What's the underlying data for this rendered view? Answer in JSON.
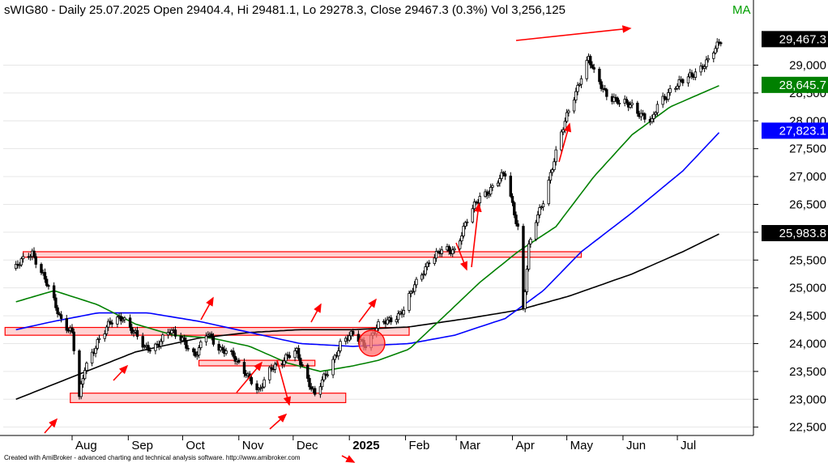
{
  "header": {
    "text": "sWIG80 - Daily 25.07.2025 Open 29404.4, Hi 29481.1, Lo 29278.3, Close 29467.3 (0.3%) Vol 3,256,125",
    "suffix": "MA"
  },
  "footer": "Created with AmiBroker - advanced charting and technical analysis software. http://www.amibroker.com",
  "colors": {
    "up": "#000000",
    "price": "#000000",
    "ma50": "#008000",
    "ma100": "#0000ff",
    "ma200": "#000000",
    "annot": "#ff0000",
    "zone_fill": "#ffc0c0"
  },
  "chart_data": {
    "type": "candlestick",
    "instrument": "sWIG80",
    "interval": "Daily",
    "last_bar": {
      "date": "25.07.2025",
      "open": 29404.4,
      "high": 29481.1,
      "low": 29278.3,
      "close": 29467.3,
      "change_pct": 0.3,
      "volume": 3256125
    },
    "y_ticks": [
      22500,
      23000,
      23500,
      24000,
      24500,
      25000,
      25500,
      26000,
      26500,
      27000,
      27500,
      28000,
      28500,
      29000
    ],
    "ylim": [
      22350,
      29850
    ],
    "month_labels": [
      "Aug",
      "Sep",
      "Oct",
      "Nov",
      "Dec",
      "2025",
      "Feb",
      "Mar",
      "Apr",
      "May",
      "Jun",
      "Jul"
    ],
    "series_tags": [
      {
        "label": "29,467.3",
        "value": 29467.3,
        "bg": "#000000",
        "fg": "#ffffff"
      },
      {
        "label": "28,645.7",
        "value": 28645.7,
        "bg": "#008000",
        "fg": "#ffffff"
      },
      {
        "label": "27,823.1",
        "value": 27823.1,
        "bg": "#0000ff",
        "fg": "#ffffff"
      },
      {
        "label": "25,983.8",
        "value": 25983.8,
        "bg": "#000000",
        "fg": "#ffffff"
      }
    ],
    "price_path": [
      [
        "2024-07-01",
        25350
      ],
      [
        "2024-07-05",
        25500
      ],
      [
        "2024-07-10",
        25650
      ],
      [
        "2024-07-15",
        25300
      ],
      [
        "2024-07-20",
        24900
      ],
      [
        "2024-07-25",
        24500
      ],
      [
        "2024-08-01",
        24200
      ],
      [
        "2024-08-05",
        23000
      ],
      [
        "2024-08-08",
        23550
      ],
      [
        "2024-08-15",
        24050
      ],
      [
        "2024-08-22",
        24350
      ],
      [
        "2024-08-29",
        24500
      ],
      [
        "2024-09-03",
        24250
      ],
      [
        "2024-09-10",
        23900
      ],
      [
        "2024-09-17",
        24000
      ],
      [
        "2024-09-24",
        24200
      ],
      [
        "2024-10-01",
        24100
      ],
      [
        "2024-10-08",
        23750
      ],
      [
        "2024-10-15",
        24200
      ],
      [
        "2024-10-22",
        23900
      ],
      [
        "2024-10-29",
        23750
      ],
      [
        "2024-11-05",
        23500
      ],
      [
        "2024-11-12",
        23100
      ],
      [
        "2024-11-19",
        23600
      ],
      [
        "2024-11-26",
        23700
      ],
      [
        "2024-12-03",
        23850
      ],
      [
        "2024-12-10",
        23300
      ],
      [
        "2024-12-13",
        23050
      ],
      [
        "2024-12-20",
        23500
      ],
      [
        "2024-12-27",
        24000
      ],
      [
        "2025-01-03",
        24150
      ],
      [
        "2025-01-10",
        24000
      ],
      [
        "2025-01-17",
        24300
      ],
      [
        "2025-01-24",
        24450
      ],
      [
        "2025-01-31",
        24600
      ],
      [
        "2025-02-07",
        25100
      ],
      [
        "2025-02-14",
        25500
      ],
      [
        "2025-02-21",
        25650
      ],
      [
        "2025-02-28",
        25700
      ],
      [
        "2025-03-07",
        26200
      ],
      [
        "2025-03-14",
        26650
      ],
      [
        "2025-03-21",
        26800
      ],
      [
        "2025-03-28",
        27050
      ],
      [
        "2025-04-04",
        26100
      ],
      [
        "2025-04-07",
        24600
      ],
      [
        "2025-04-10",
        25700
      ],
      [
        "2025-04-14",
        26200
      ],
      [
        "2025-04-18",
        26600
      ],
      [
        "2025-04-25",
        27400
      ],
      [
        "2025-05-02",
        28200
      ],
      [
        "2025-05-09",
        28800
      ],
      [
        "2025-05-13",
        29100
      ],
      [
        "2025-05-16",
        28850
      ],
      [
        "2025-05-23",
        28500
      ],
      [
        "2025-05-30",
        28300
      ],
      [
        "2025-06-06",
        28300
      ],
      [
        "2025-06-13",
        28050
      ],
      [
        "2025-06-17",
        27950
      ],
      [
        "2025-06-20",
        28300
      ],
      [
        "2025-06-27",
        28550
      ],
      [
        "2025-07-04",
        28700
      ],
      [
        "2025-07-11",
        28900
      ],
      [
        "2025-07-18",
        29050
      ],
      [
        "2025-07-25",
        29467
      ]
    ],
    "ma50_path": [
      [
        "2024-07-01",
        24750
      ],
      [
        "2024-07-22",
        24950
      ],
      [
        "2024-08-15",
        24700
      ],
      [
        "2024-09-05",
        24350
      ],
      [
        "2024-09-26",
        24150
      ],
      [
        "2024-10-17",
        24100
      ],
      [
        "2024-11-07",
        23950
      ],
      [
        "2024-11-28",
        23650
      ],
      [
        "2024-12-16",
        23500
      ],
      [
        "2025-01-03",
        23600
      ],
      [
        "2025-01-17",
        23700
      ],
      [
        "2025-02-03",
        23900
      ],
      [
        "2025-02-21",
        24450
      ],
      [
        "2025-03-14",
        25100
      ],
      [
        "2025-04-04",
        25650
      ],
      [
        "2025-04-25",
        26100
      ],
      [
        "2025-05-16",
        27000
      ],
      [
        "2025-06-06",
        27750
      ],
      [
        "2025-06-27",
        28250
      ],
      [
        "2025-07-25",
        28646
      ]
    ],
    "ma100_path": [
      [
        "2024-07-01",
        24250
      ],
      [
        "2024-07-22",
        24400
      ],
      [
        "2024-08-15",
        24550
      ],
      [
        "2024-09-12",
        24550
      ],
      [
        "2024-10-10",
        24400
      ],
      [
        "2024-11-07",
        24200
      ],
      [
        "2024-12-05",
        24000
      ],
      [
        "2025-01-03",
        23950
      ],
      [
        "2025-02-03",
        24000
      ],
      [
        "2025-02-28",
        24150
      ],
      [
        "2025-03-28",
        24450
      ],
      [
        "2025-04-18",
        24950
      ],
      [
        "2025-05-09",
        25650
      ],
      [
        "2025-06-06",
        26350
      ],
      [
        "2025-07-04",
        27100
      ],
      [
        "2025-07-25",
        27823
      ]
    ],
    "ma200_path": [
      [
        "2024-07-01",
        23000
      ],
      [
        "2024-08-01",
        23400
      ],
      [
        "2024-09-05",
        23850
      ],
      [
        "2024-10-10",
        24100
      ],
      [
        "2024-11-07",
        24200
      ],
      [
        "2024-12-05",
        24250
      ],
      [
        "2025-01-03",
        24250
      ],
      [
        "2025-02-03",
        24300
      ],
      [
        "2025-03-07",
        24450
      ],
      [
        "2025-04-04",
        24600
      ],
      [
        "2025-05-02",
        24850
      ],
      [
        "2025-06-06",
        25250
      ],
      [
        "2025-07-04",
        25650
      ],
      [
        "2025-07-25",
        25984
      ]
    ],
    "zones": [
      {
        "from": "2024-07-05",
        "to": "2025-05-09",
        "low": 25550,
        "high": 25650
      },
      {
        "from": "2024-06-25",
        "to": "2025-02-03",
        "low": 24150,
        "high": 24290
      },
      {
        "from": "2024-10-10",
        "to": "2024-12-13",
        "low": 23600,
        "high": 23700
      },
      {
        "from": "2024-07-31",
        "to": "2024-12-30",
        "low": 22940,
        "high": 23110
      }
    ]
  }
}
